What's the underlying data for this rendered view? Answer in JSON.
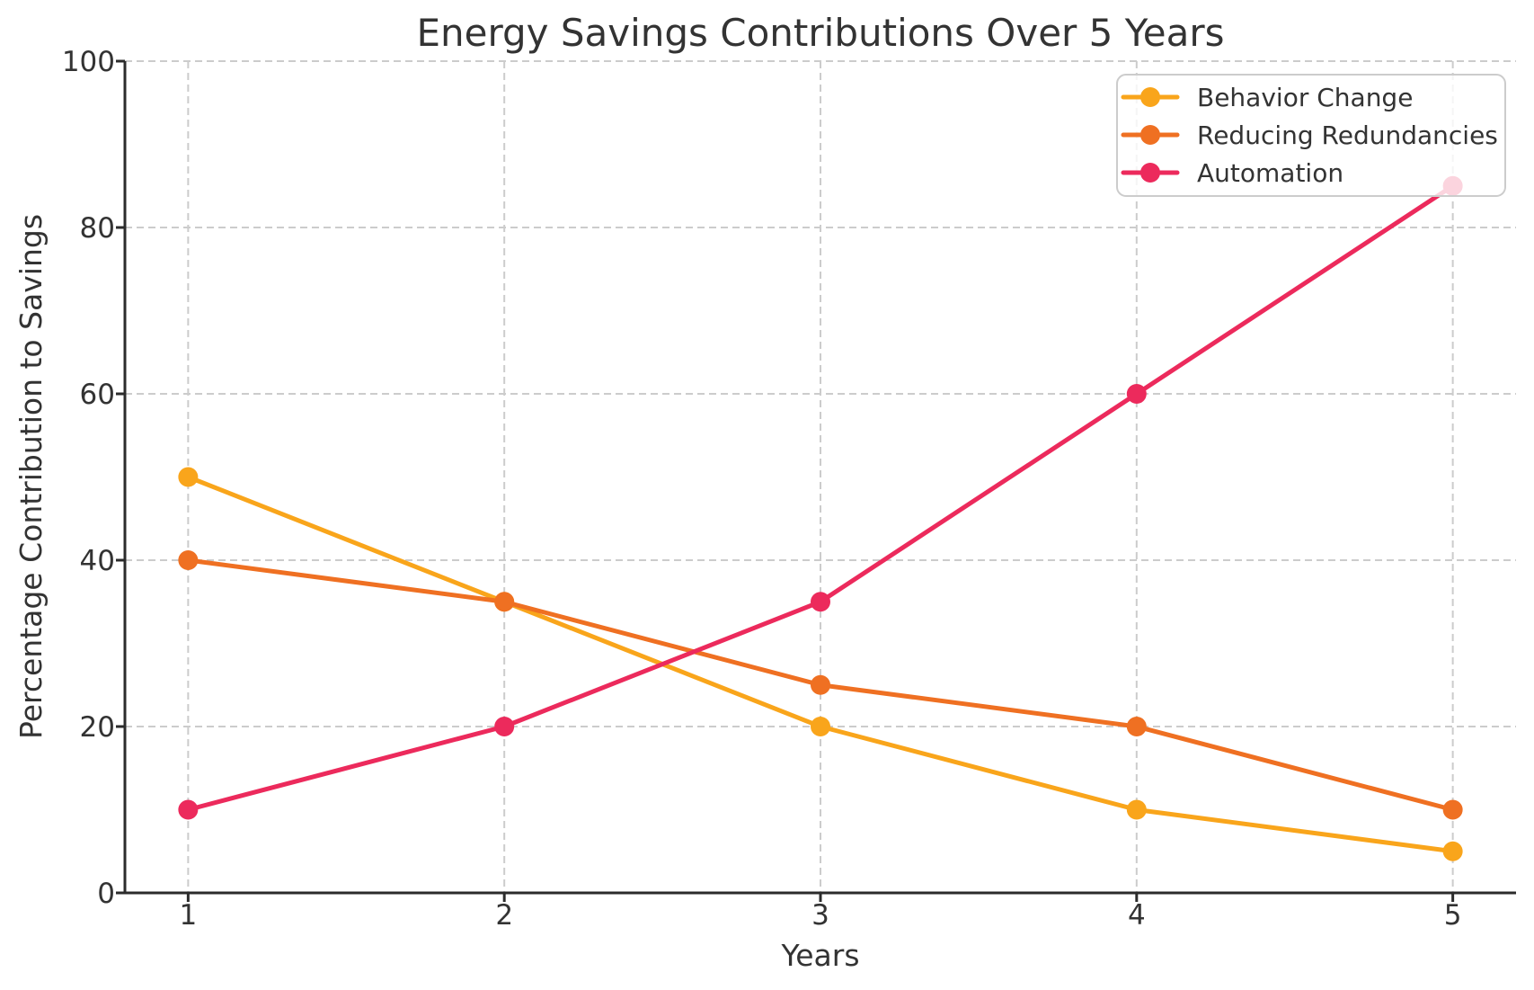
{
  "figure": {
    "background": "#ffffff"
  },
  "chart_data": {
    "type": "line",
    "title": "Energy Savings Contributions Over 5 Years",
    "xlabel": "Years",
    "ylabel": "Percentage Contribution to Savings",
    "x": [
      1,
      2,
      3,
      4,
      5
    ],
    "series": [
      {
        "name": "Behavior Change",
        "color": "#F9A51B",
        "values": [
          50,
          35,
          20,
          10,
          5
        ]
      },
      {
        "name": "Reducing Redundancies",
        "color": "#EF7022",
        "values": [
          40,
          35,
          25,
          20,
          10
        ]
      },
      {
        "name": "Automation",
        "color": "#EC2A5C",
        "values": [
          10,
          20,
          35,
          60,
          85
        ]
      }
    ],
    "xlim": [
      0.8,
      5.2
    ],
    "ylim": [
      0,
      100
    ],
    "xticks": [
      "1",
      "2",
      "3",
      "4",
      "5"
    ],
    "yticks": [
      "0",
      "20",
      "40",
      "60",
      "80",
      "100"
    ],
    "grid": true,
    "grid_style": "dashed",
    "legend_position": "upper right",
    "legend_entries": [
      "Behavior Change",
      "Reducing Redundancies",
      "Automation"
    ]
  },
  "styles": {
    "grid_color": "#cccccc",
    "spine_color": "#2b2b2b",
    "text_color": "#333333",
    "legend_border_color": "#cccccc",
    "legend_fill": "rgba(255,255,255,0.8)"
  }
}
